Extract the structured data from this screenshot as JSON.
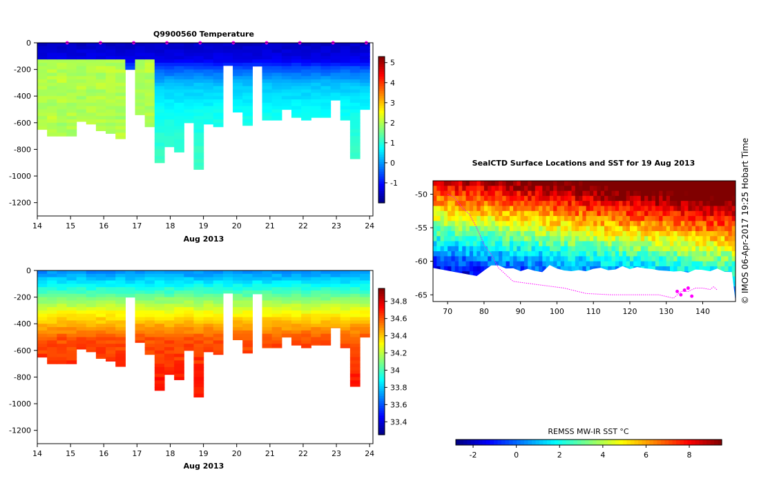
{
  "chart_data": [
    {
      "type": "heatmap",
      "title": "Q9900560  Temperature",
      "xlabel": "Aug 2013",
      "ylabel": "",
      "x_ticks": [
        "14",
        "15",
        "16",
        "17",
        "18",
        "19",
        "20",
        "21",
        "22",
        "23",
        "24"
      ],
      "y_ticks": [
        "0",
        "-200",
        "-400",
        "-600",
        "-800",
        "-1000",
        "-1200"
      ],
      "xlim": [
        14,
        24.1
      ],
      "ylim": [
        -1300,
        0
      ],
      "profile_depths": [
        -650,
        -700,
        -700,
        -700,
        -590,
        -610,
        -660,
        -680,
        -720,
        -200,
        -540,
        -630,
        -900,
        -780,
        -820,
        -600,
        -950,
        -610,
        -630,
        -170,
        -520,
        -620,
        -175,
        -580,
        -580,
        -500,
        -560,
        -580,
        -560,
        -560,
        -430,
        -580,
        -870,
        -500
      ],
      "layers": [
        {
          "depth": 0,
          "value": -1.5
        },
        {
          "depth": -120,
          "value": -1.2
        },
        {
          "depth": -180,
          "value": -0.5
        },
        {
          "depth": -300,
          "value": 0.3
        },
        {
          "depth": -500,
          "value": 0.8
        },
        {
          "depth": -900,
          "value": 1.2
        }
      ],
      "warm_profiles_value": 2.0,
      "surface_markers": [
        "14.9",
        "15.9",
        "16.9",
        "17.9",
        "18.9",
        "19.9",
        "20.9",
        "21.9",
        "22.9",
        "23.9"
      ],
      "colorbar": {
        "ticks": [
          "-1",
          "0",
          "1",
          "2",
          "3",
          "4",
          "5"
        ],
        "range": [
          -2,
          5.3
        ]
      }
    },
    {
      "type": "heatmap",
      "title": "",
      "xlabel": "Aug 2013",
      "ylabel": "",
      "x_ticks": [
        "14",
        "15",
        "16",
        "17",
        "18",
        "19",
        "20",
        "21",
        "22",
        "23",
        "24"
      ],
      "y_ticks": [
        "0",
        "-200",
        "-400",
        "-600",
        "-800",
        "-1000",
        "-1200"
      ],
      "xlim": [
        14,
        24.1
      ],
      "ylim": [
        -1300,
        0
      ],
      "layers": [
        {
          "depth": 0,
          "value": 33.7
        },
        {
          "depth": -150,
          "value": 34.0
        },
        {
          "depth": -300,
          "value": 34.3
        },
        {
          "depth": -500,
          "value": 34.6
        },
        {
          "depth": -800,
          "value": 34.7
        }
      ],
      "colorbar": {
        "ticks": [
          "33.4",
          "33.6",
          "33.8",
          "34",
          "34.2",
          "34.4",
          "34.6",
          "34.8"
        ],
        "range": [
          33.25,
          34.95
        ]
      }
    },
    {
      "type": "heatmap",
      "title": "SealCTD Surface Locations and SST for 19 Aug 2013",
      "xlabel": "",
      "ylabel": "",
      "x_ticks": [
        "70",
        "80",
        "90",
        "100",
        "110",
        "120",
        "130",
        "140"
      ],
      "y_ticks": [
        "-50",
        "-55",
        "-60",
        "-65"
      ],
      "xlim": [
        66,
        149
      ],
      "ylim": [
        -66,
        -48
      ],
      "colorbar": {
        "label": "REMSS MW-IR SST °C",
        "ticks": [
          "-2",
          "0",
          "2",
          "4",
          "6",
          "8"
        ],
        "range": [
          -2.8,
          9.5
        ]
      },
      "track": [
        [
          70,
          -50
        ],
        [
          72,
          -50.5
        ],
        [
          74,
          -52
        ],
        [
          76,
          -53
        ],
        [
          78,
          -55
        ],
        [
          80,
          -57.5
        ],
        [
          82,
          -59
        ],
        [
          84,
          -61
        ],
        [
          88,
          -63
        ],
        [
          95,
          -63.5
        ],
        [
          102,
          -64
        ],
        [
          108,
          -64.8
        ],
        [
          115,
          -65
        ],
        [
          120,
          -65
        ],
        [
          125,
          -65
        ],
        [
          128,
          -65
        ],
        [
          132,
          -65.5
        ],
        [
          134,
          -64.5
        ],
        [
          136,
          -64.5
        ],
        [
          138,
          -64
        ],
        [
          140,
          -64
        ],
        [
          142,
          -64.2
        ],
        [
          143,
          -63.8
        ],
        [
          144,
          -64.3
        ]
      ],
      "locations": [
        [
          133,
          -64.5
        ],
        [
          134,
          -65
        ],
        [
          135,
          -64.3
        ],
        [
          136,
          -64
        ],
        [
          137,
          -65.2
        ]
      ]
    }
  ],
  "stamp": "© IMOS 06-Apr-2017 19:25 Hobart Time"
}
